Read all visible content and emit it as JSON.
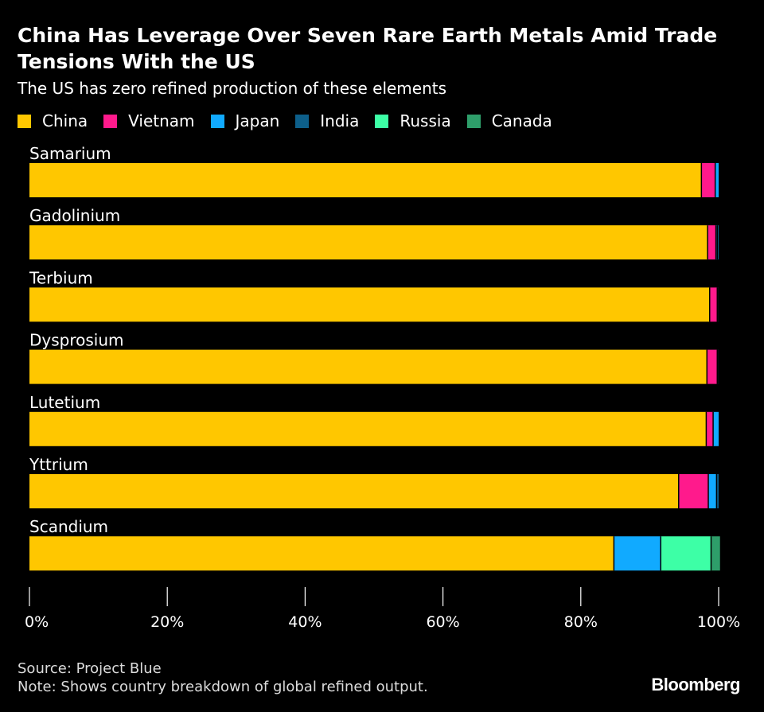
{
  "chart_data": {
    "type": "bar",
    "orientation": "horizontal",
    "stacked": true,
    "title": "China Has Leverage Over Seven Rare Earth Metals Amid Trade Tensions With the US",
    "subtitle": "The US has zero refined production of these elements",
    "categories": [
      "Samarium",
      "Gadolinium",
      "Terbium",
      "Dysprosium",
      "Lutetium",
      "Yttrium",
      "Scandium"
    ],
    "series": [
      {
        "name": "China",
        "color": "#FFC700",
        "values": [
          97.5,
          98.4,
          98.7,
          98.3,
          98.2,
          94.2,
          84.8
        ]
      },
      {
        "name": "Vietnam",
        "color": "#FF1A8C",
        "values": [
          2.0,
          1.2,
          1.1,
          1.5,
          1.0,
          4.3,
          0.0
        ]
      },
      {
        "name": "Japan",
        "color": "#11AAFF",
        "values": [
          0.5,
          0.2,
          0.1,
          0.1,
          0.8,
          1.2,
          6.8
        ]
      },
      {
        "name": "India",
        "color": "#0D5F8A",
        "values": [
          0.0,
          0.2,
          0.1,
          0.1,
          0.0,
          0.3,
          0.0
        ]
      },
      {
        "name": "Russia",
        "color": "#3DFFA6",
        "values": [
          0.0,
          0.0,
          0.0,
          0.0,
          0.0,
          0.0,
          7.3
        ]
      },
      {
        "name": "Canada",
        "color": "#2E9E6A",
        "values": [
          0.0,
          0.0,
          0.0,
          0.0,
          0.0,
          0.0,
          1.3
        ]
      }
    ],
    "xlim": [
      0,
      100
    ],
    "xticks": [
      0,
      20,
      40,
      60,
      80,
      100
    ],
    "xtick_labels": [
      "0%",
      "20%",
      "40%",
      "60%",
      "80%",
      "100%"
    ],
    "xlabel": "",
    "ylabel": "",
    "grid": false,
    "legend_position": "top-left",
    "label_color": "#FFFFFF",
    "background": "#000000"
  },
  "footer": {
    "source": "Source: Project Blue",
    "note": "Note: Shows country breakdown of global refined output.",
    "brand": "Bloomberg"
  }
}
